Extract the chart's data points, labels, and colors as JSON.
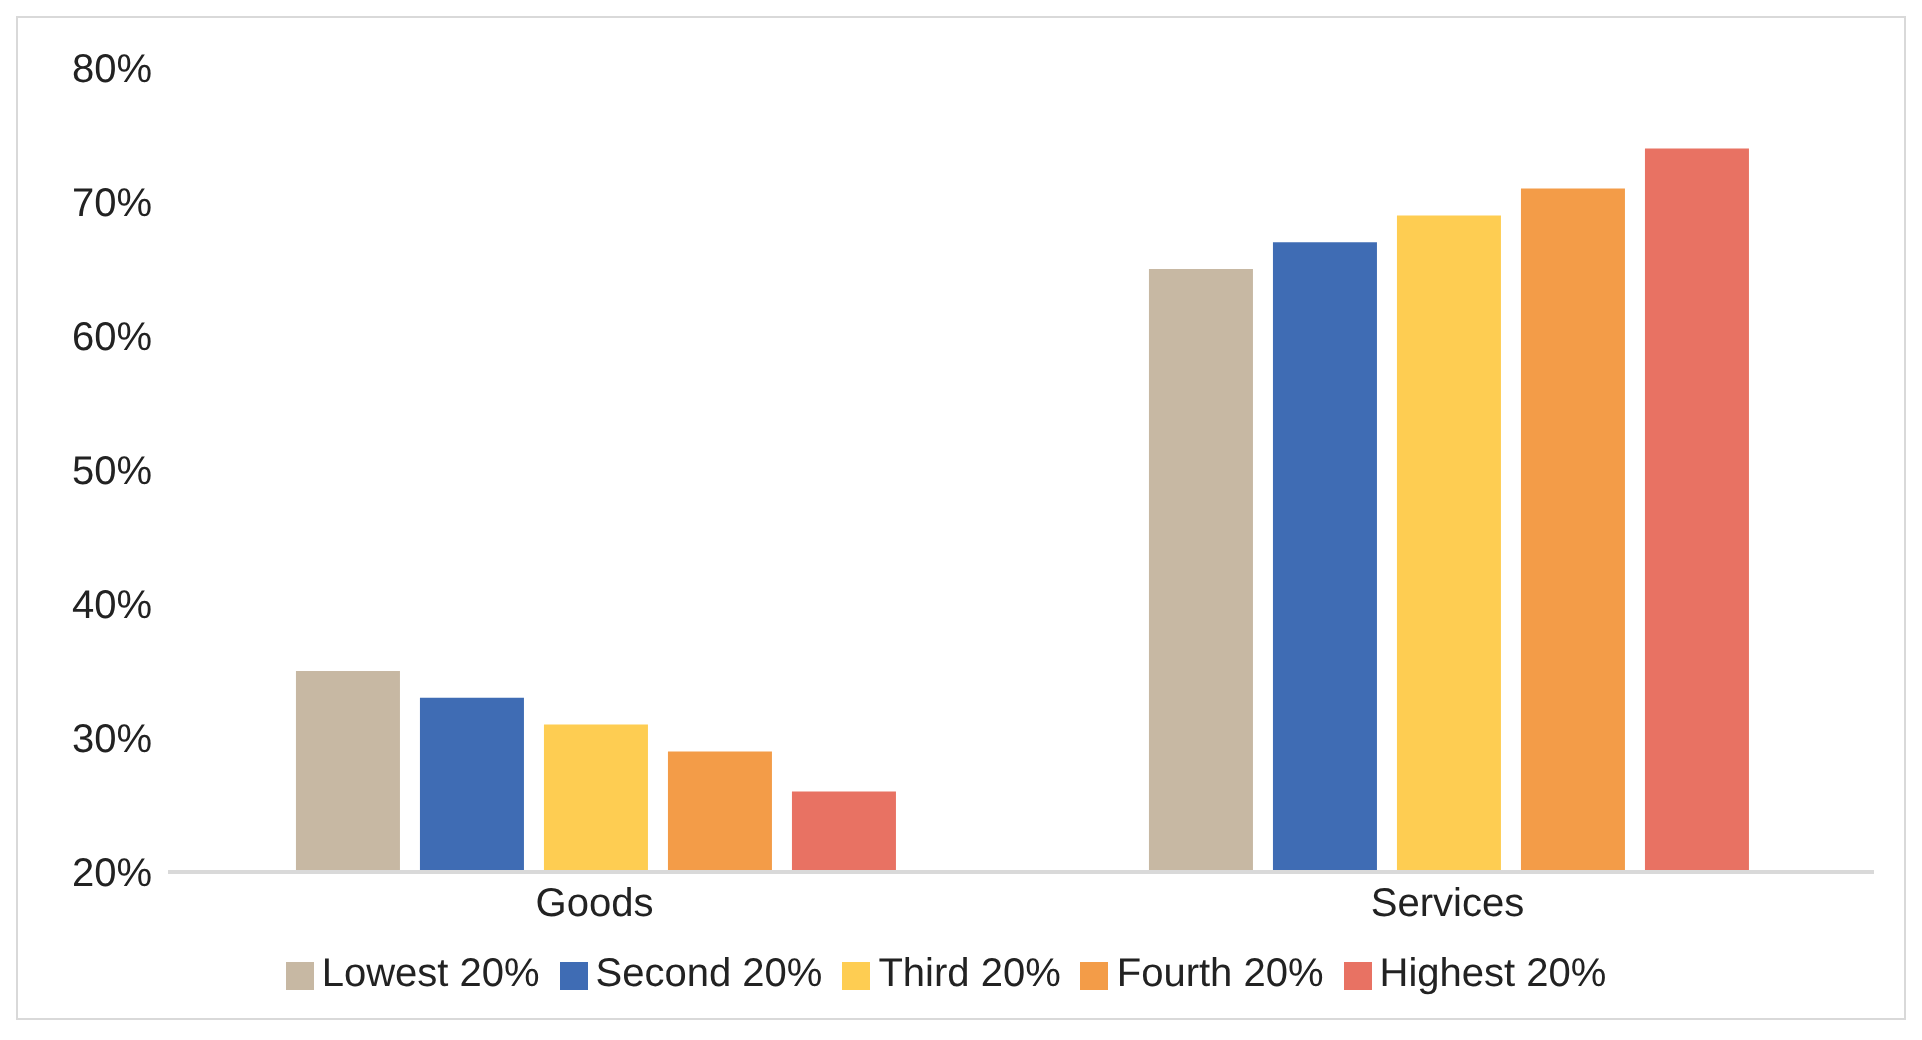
{
  "chart_data": {
    "type": "bar",
    "categories": [
      "Goods",
      "Services"
    ],
    "series": [
      {
        "name": "Lowest 20%",
        "color": "#c7b8a3",
        "values": [
          35,
          65
        ]
      },
      {
        "name": "Second 20%",
        "color": "#3f6cb4",
        "values": [
          33,
          67
        ]
      },
      {
        "name": "Third 20%",
        "color": "#fecd52",
        "values": [
          31,
          69
        ]
      },
      {
        "name": "Fourth 20%",
        "color": "#f39c48",
        "values": [
          29,
          71
        ]
      },
      {
        "name": "Highest 20%",
        "color": "#e87263",
        "values": [
          26,
          74
        ]
      }
    ],
    "ylim": [
      20,
      80
    ],
    "yticks": [
      {
        "value": 20,
        "label": "20%"
      },
      {
        "value": 30,
        "label": "30%"
      },
      {
        "value": 40,
        "label": "40%"
      },
      {
        "value": 50,
        "label": "50%"
      },
      {
        "value": 60,
        "label": "60%"
      },
      {
        "value": 70,
        "label": "70%"
      },
      {
        "value": 80,
        "label": "80%"
      }
    ],
    "grid": false,
    "legend": "bottom"
  }
}
